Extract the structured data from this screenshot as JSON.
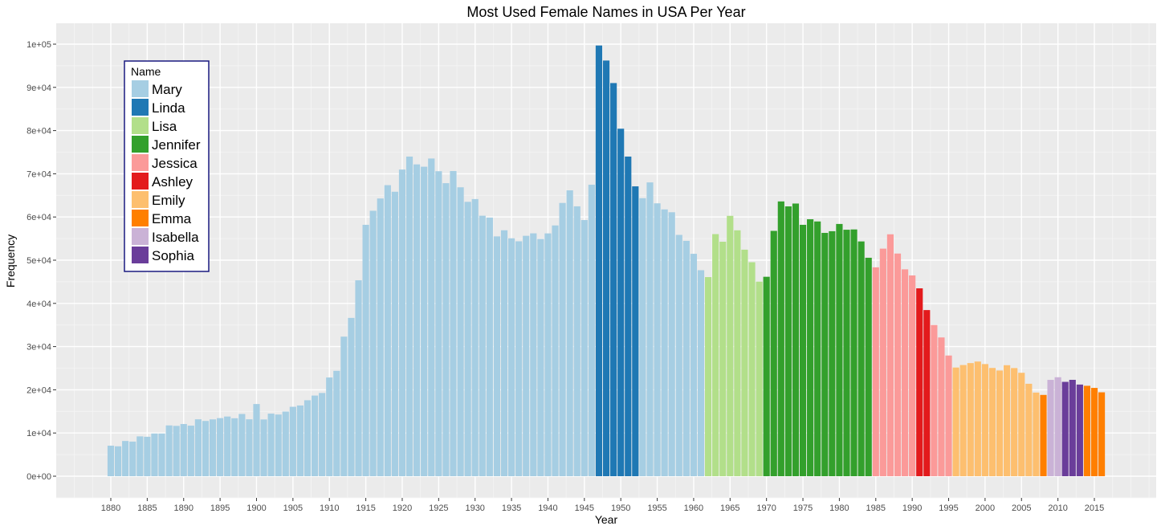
{
  "chart_data": {
    "type": "bar",
    "title": "Most Used Female Names in USA Per Year",
    "xlabel": "Year",
    "ylabel": "Frequency",
    "ylim": [
      0,
      100000
    ],
    "grid": true,
    "legend_position": "top-left",
    "legend_title": "Name",
    "series": [
      {
        "name": "Mary",
        "color": "#A6CEE3"
      },
      {
        "name": "Linda",
        "color": "#1F78B4"
      },
      {
        "name": "Lisa",
        "color": "#B2DF8A"
      },
      {
        "name": "Jennifer",
        "color": "#33A02C"
      },
      {
        "name": "Jessica",
        "color": "#FB9A99"
      },
      {
        "name": "Ashley",
        "color": "#E31A1C"
      },
      {
        "name": "Emily",
        "color": "#FDBF6F"
      },
      {
        "name": "Emma",
        "color": "#FF7F00"
      },
      {
        "name": "Isabella",
        "color": "#CAB2D6"
      },
      {
        "name": "Sophia",
        "color": "#6A3D9A"
      }
    ],
    "x_ticks": [
      1880,
      1885,
      1890,
      1895,
      1900,
      1905,
      1910,
      1915,
      1920,
      1925,
      1930,
      1935,
      1940,
      1945,
      1950,
      1955,
      1960,
      1965,
      1970,
      1975,
      1980,
      1985,
      1990,
      1995,
      2000,
      2005,
      2010,
      2015
    ],
    "y_ticks": [
      {
        "value": 0,
        "label": "0e+00"
      },
      {
        "value": 10000,
        "label": "1e+04"
      },
      {
        "value": 20000,
        "label": "2e+04"
      },
      {
        "value": 30000,
        "label": "3e+04"
      },
      {
        "value": 40000,
        "label": "4e+04"
      },
      {
        "value": 50000,
        "label": "5e+04"
      },
      {
        "value": 60000,
        "label": "6e+04"
      },
      {
        "value": 70000,
        "label": "7e+04"
      },
      {
        "value": 80000,
        "label": "8e+04"
      },
      {
        "value": 90000,
        "label": "9e+04"
      },
      {
        "value": 100000,
        "label": "1e+05"
      }
    ],
    "data": [
      {
        "year": 1880,
        "name": "Mary",
        "value": 7065
      },
      {
        "year": 1881,
        "name": "Mary",
        "value": 6919
      },
      {
        "year": 1882,
        "name": "Mary",
        "value": 8148
      },
      {
        "year": 1883,
        "name": "Mary",
        "value": 8012
      },
      {
        "year": 1884,
        "name": "Mary",
        "value": 9217
      },
      {
        "year": 1885,
        "name": "Mary",
        "value": 9128
      },
      {
        "year": 1886,
        "name": "Mary",
        "value": 9889
      },
      {
        "year": 1887,
        "name": "Mary",
        "value": 9888
      },
      {
        "year": 1888,
        "name": "Mary",
        "value": 11754
      },
      {
        "year": 1889,
        "name": "Mary",
        "value": 11648
      },
      {
        "year": 1890,
        "name": "Mary",
        "value": 12078
      },
      {
        "year": 1891,
        "name": "Mary",
        "value": 11703
      },
      {
        "year": 1892,
        "name": "Mary",
        "value": 13172
      },
      {
        "year": 1893,
        "name": "Mary",
        "value": 12784
      },
      {
        "year": 1894,
        "name": "Mary",
        "value": 13151
      },
      {
        "year": 1895,
        "name": "Mary",
        "value": 13446
      },
      {
        "year": 1896,
        "name": "Mary",
        "value": 13811
      },
      {
        "year": 1897,
        "name": "Mary",
        "value": 13413
      },
      {
        "year": 1898,
        "name": "Mary",
        "value": 14406
      },
      {
        "year": 1899,
        "name": "Mary",
        "value": 13172
      },
      {
        "year": 1900,
        "name": "Mary",
        "value": 16707
      },
      {
        "year": 1901,
        "name": "Mary",
        "value": 13136
      },
      {
        "year": 1902,
        "name": "Mary",
        "value": 14486
      },
      {
        "year": 1903,
        "name": "Mary",
        "value": 14275
      },
      {
        "year": 1904,
        "name": "Mary",
        "value": 14961
      },
      {
        "year": 1905,
        "name": "Mary",
        "value": 16066
      },
      {
        "year": 1906,
        "name": "Mary",
        "value": 16370
      },
      {
        "year": 1907,
        "name": "Mary",
        "value": 17580
      },
      {
        "year": 1908,
        "name": "Mary",
        "value": 18664
      },
      {
        "year": 1909,
        "name": "Mary",
        "value": 19259
      },
      {
        "year": 1910,
        "name": "Mary",
        "value": 22848
      },
      {
        "year": 1911,
        "name": "Mary",
        "value": 24390
      },
      {
        "year": 1912,
        "name": "Mary",
        "value": 32304
      },
      {
        "year": 1913,
        "name": "Mary",
        "value": 36641
      },
      {
        "year": 1914,
        "name": "Mary",
        "value": 45345
      },
      {
        "year": 1915,
        "name": "Mary",
        "value": 58187
      },
      {
        "year": 1916,
        "name": "Mary",
        "value": 61438
      },
      {
        "year": 1917,
        "name": "Mary",
        "value": 64281
      },
      {
        "year": 1918,
        "name": "Mary",
        "value": 67365
      },
      {
        "year": 1919,
        "name": "Mary",
        "value": 65838
      },
      {
        "year": 1920,
        "name": "Mary",
        "value": 70980
      },
      {
        "year": 1921,
        "name": "Mary",
        "value": 73982
      },
      {
        "year": 1922,
        "name": "Mary",
        "value": 72173
      },
      {
        "year": 1923,
        "name": "Mary",
        "value": 71635
      },
      {
        "year": 1924,
        "name": "Mary",
        "value": 73536
      },
      {
        "year": 1925,
        "name": "Mary",
        "value": 70593
      },
      {
        "year": 1926,
        "name": "Mary",
        "value": 67829
      },
      {
        "year": 1927,
        "name": "Mary",
        "value": 70636
      },
      {
        "year": 1928,
        "name": "Mary",
        "value": 66870
      },
      {
        "year": 1929,
        "name": "Mary",
        "value": 63510
      },
      {
        "year": 1930,
        "name": "Mary",
        "value": 64146
      },
      {
        "year": 1931,
        "name": "Mary",
        "value": 60296
      },
      {
        "year": 1932,
        "name": "Mary",
        "value": 59872
      },
      {
        "year": 1933,
        "name": "Mary",
        "value": 55507
      },
      {
        "year": 1934,
        "name": "Mary",
        "value": 56924
      },
      {
        "year": 1935,
        "name": "Mary",
        "value": 55065
      },
      {
        "year": 1936,
        "name": "Mary",
        "value": 54373
      },
      {
        "year": 1937,
        "name": "Mary",
        "value": 55642
      },
      {
        "year": 1938,
        "name": "Mary",
        "value": 56214
      },
      {
        "year": 1939,
        "name": "Mary",
        "value": 54905
      },
      {
        "year": 1940,
        "name": "Mary",
        "value": 56200
      },
      {
        "year": 1941,
        "name": "Mary",
        "value": 58040
      },
      {
        "year": 1942,
        "name": "Mary",
        "value": 63249
      },
      {
        "year": 1943,
        "name": "Mary",
        "value": 66168
      },
      {
        "year": 1944,
        "name": "Mary",
        "value": 62465
      },
      {
        "year": 1945,
        "name": "Mary",
        "value": 59288
      },
      {
        "year": 1946,
        "name": "Mary",
        "value": 67468
      },
      {
        "year": 1947,
        "name": "Linda",
        "value": 99689
      },
      {
        "year": 1948,
        "name": "Linda",
        "value": 96211
      },
      {
        "year": 1949,
        "name": "Linda",
        "value": 90999
      },
      {
        "year": 1950,
        "name": "Linda",
        "value": 80431
      },
      {
        "year": 1951,
        "name": "Linda",
        "value": 73981
      },
      {
        "year": 1952,
        "name": "Linda",
        "value": 67090
      },
      {
        "year": 1953,
        "name": "Mary",
        "value": 64352
      },
      {
        "year": 1954,
        "name": "Mary",
        "value": 68003
      },
      {
        "year": 1955,
        "name": "Mary",
        "value": 63162
      },
      {
        "year": 1956,
        "name": "Mary",
        "value": 61752
      },
      {
        "year": 1957,
        "name": "Mary",
        "value": 61094
      },
      {
        "year": 1958,
        "name": "Mary",
        "value": 55855
      },
      {
        "year": 1959,
        "name": "Mary",
        "value": 54474
      },
      {
        "year": 1960,
        "name": "Mary",
        "value": 51475
      },
      {
        "year": 1961,
        "name": "Mary",
        "value": 47680
      },
      {
        "year": 1962,
        "name": "Lisa",
        "value": 46084
      },
      {
        "year": 1963,
        "name": "Lisa",
        "value": 56035
      },
      {
        "year": 1964,
        "name": "Lisa",
        "value": 54269
      },
      {
        "year": 1965,
        "name": "Lisa",
        "value": 60267
      },
      {
        "year": 1966,
        "name": "Lisa",
        "value": 56914
      },
      {
        "year": 1967,
        "name": "Lisa",
        "value": 52435
      },
      {
        "year": 1968,
        "name": "Lisa",
        "value": 49528
      },
      {
        "year": 1969,
        "name": "Lisa",
        "value": 45035
      },
      {
        "year": 1970,
        "name": "Jennifer",
        "value": 46160
      },
      {
        "year": 1971,
        "name": "Jennifer",
        "value": 56783
      },
      {
        "year": 1972,
        "name": "Jennifer",
        "value": 63603
      },
      {
        "year": 1973,
        "name": "Jennifer",
        "value": 62453
      },
      {
        "year": 1974,
        "name": "Jennifer",
        "value": 63111
      },
      {
        "year": 1975,
        "name": "Jennifer",
        "value": 58185
      },
      {
        "year": 1976,
        "name": "Jennifer",
        "value": 59474
      },
      {
        "year": 1977,
        "name": "Jennifer",
        "value": 58964
      },
      {
        "year": 1978,
        "name": "Jennifer",
        "value": 56316
      },
      {
        "year": 1979,
        "name": "Jennifer",
        "value": 56706
      },
      {
        "year": 1980,
        "name": "Jennifer",
        "value": 58385
      },
      {
        "year": 1981,
        "name": "Jennifer",
        "value": 57049
      },
      {
        "year": 1982,
        "name": "Jennifer",
        "value": 57115
      },
      {
        "year": 1983,
        "name": "Jennifer",
        "value": 54342
      },
      {
        "year": 1984,
        "name": "Jennifer",
        "value": 50561
      },
      {
        "year": 1985,
        "name": "Jessica",
        "value": 48346
      },
      {
        "year": 1986,
        "name": "Jessica",
        "value": 52674
      },
      {
        "year": 1987,
        "name": "Jessica",
        "value": 55991
      },
      {
        "year": 1988,
        "name": "Jessica",
        "value": 51538
      },
      {
        "year": 1989,
        "name": "Jessica",
        "value": 47885
      },
      {
        "year": 1990,
        "name": "Jessica",
        "value": 46470
      },
      {
        "year": 1991,
        "name": "Ashley",
        "value": 43481
      },
      {
        "year": 1992,
        "name": "Ashley",
        "value": 38452
      },
      {
        "year": 1993,
        "name": "Jessica",
        "value": 34987
      },
      {
        "year": 1994,
        "name": "Jessica",
        "value": 32117
      },
      {
        "year": 1995,
        "name": "Jessica",
        "value": 27935
      },
      {
        "year": 1996,
        "name": "Emily",
        "value": 25151
      },
      {
        "year": 1997,
        "name": "Emily",
        "value": 25732
      },
      {
        "year": 1998,
        "name": "Emily",
        "value": 26181
      },
      {
        "year": 1999,
        "name": "Emily",
        "value": 26539
      },
      {
        "year": 2000,
        "name": "Emily",
        "value": 25953
      },
      {
        "year": 2001,
        "name": "Emily",
        "value": 25055
      },
      {
        "year": 2002,
        "name": "Emily",
        "value": 24463
      },
      {
        "year": 2003,
        "name": "Emily",
        "value": 25688
      },
      {
        "year": 2004,
        "name": "Emily",
        "value": 25033
      },
      {
        "year": 2005,
        "name": "Emily",
        "value": 23937
      },
      {
        "year": 2006,
        "name": "Emily",
        "value": 21398
      },
      {
        "year": 2007,
        "name": "Emily",
        "value": 19355
      },
      {
        "year": 2008,
        "name": "Emma",
        "value": 18813
      },
      {
        "year": 2009,
        "name": "Isabella",
        "value": 22298
      },
      {
        "year": 2010,
        "name": "Isabella",
        "value": 22905
      },
      {
        "year": 2011,
        "name": "Sophia",
        "value": 21837
      },
      {
        "year": 2012,
        "name": "Sophia",
        "value": 22304
      },
      {
        "year": 2013,
        "name": "Sophia",
        "value": 21213
      },
      {
        "year": 2014,
        "name": "Emma",
        "value": 20924
      },
      {
        "year": 2015,
        "name": "Emma",
        "value": 20435
      },
      {
        "year": 2016,
        "name": "Emma",
        "value": 19414
      }
    ]
  }
}
